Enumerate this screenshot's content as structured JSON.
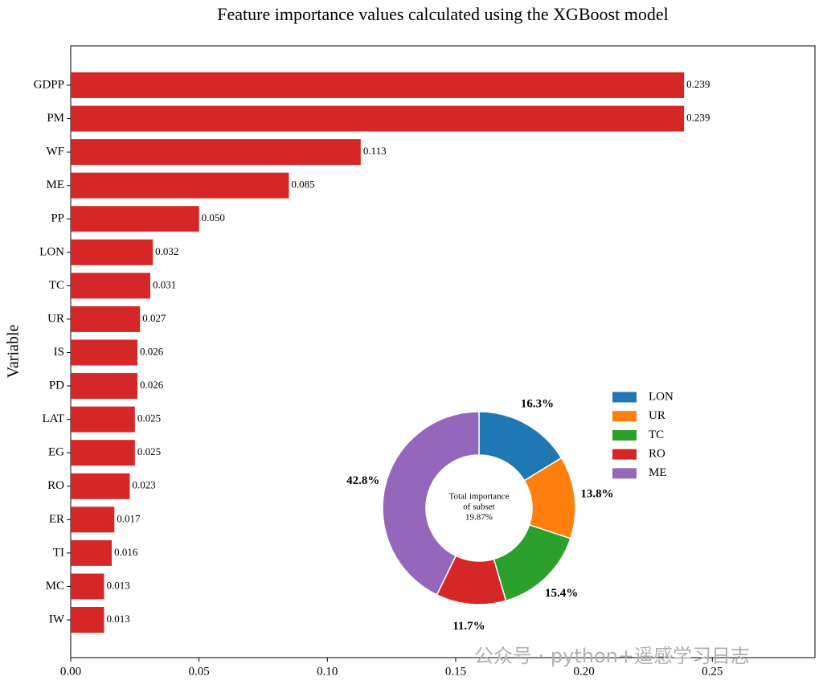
{
  "chart_data": [
    {
      "type": "barh",
      "title": "Feature importance values calculated using the XGBoost model",
      "ylabel": "Variable",
      "categories": [
        "GDPP",
        "PM",
        "WF",
        "ME",
        "PP",
        "LON",
        "TC",
        "UR",
        "IS",
        "PD",
        "LAT",
        "EG",
        "RO",
        "ER",
        "TI",
        "MC",
        "IW"
      ],
      "values": [
        0.239,
        0.239,
        0.113,
        0.085,
        0.05,
        0.032,
        0.031,
        0.027,
        0.026,
        0.026,
        0.025,
        0.025,
        0.023,
        0.017,
        0.016,
        0.013,
        0.013
      ],
      "value_labels": [
        "0.239",
        "0.239",
        "0.113",
        "0.085",
        "0.050",
        "0.032",
        "0.031",
        "0.027",
        "0.026",
        "0.026",
        "0.025",
        "0.025",
        "0.023",
        "0.017",
        "0.016",
        "0.013",
        "0.013"
      ],
      "color": "#d62728",
      "xlim": [
        0,
        0.29
      ],
      "xticks": [
        {
          "value": 0,
          "label": "0.00"
        },
        0.05,
        {
          "value": 0.1,
          "label": "0.10"
        },
        0.15,
        {
          "value": 0.2,
          "label": "0.20"
        },
        0.25
      ]
    },
    {
      "type": "donut",
      "categories": [
        "LON",
        "UR",
        "TC",
        "RO",
        "ME"
      ],
      "values": [
        16.3,
        13.8,
        15.4,
        11.7,
        42.8
      ],
      "value_labels": [
        "16.3%",
        "13.8%",
        "15.4%",
        "11.7%",
        "42.8%"
      ],
      "colors": [
        "#1f77b4",
        "#ff7f0e",
        "#2ca02c",
        "#d62728",
        "#9467bd"
      ],
      "center_text": [
        "Total importance",
        "of subset",
        "19.87%"
      ],
      "legend": "upper right"
    }
  ],
  "watermark": "公众号 · python+遥感学习日志"
}
